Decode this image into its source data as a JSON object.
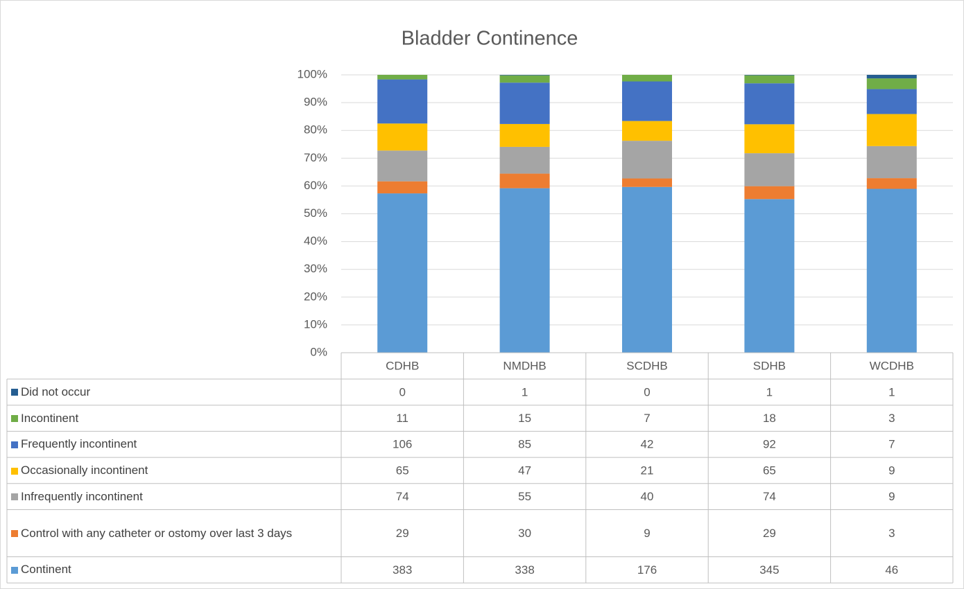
{
  "chart_data": {
    "type": "bar",
    "stack": "percent",
    "title": "Bladder Continence",
    "categories": [
      "CDHB",
      "NMDHB",
      "SCDHB",
      "SDHB",
      "WCDHB"
    ],
    "series": [
      {
        "name": "Continent",
        "color": "#5b9bd5",
        "values": [
          383,
          338,
          176,
          345,
          46
        ]
      },
      {
        "name": "Control with any catheter or ostomy over last 3 days",
        "color": "#ed7d31",
        "values": [
          29,
          30,
          9,
          29,
          3
        ]
      },
      {
        "name": "Infrequently incontinent",
        "color": "#a5a5a5",
        "values": [
          74,
          55,
          40,
          74,
          9
        ]
      },
      {
        "name": "Occasionally incontinent",
        "color": "#ffc000",
        "values": [
          65,
          47,
          21,
          65,
          9
        ]
      },
      {
        "name": "Frequently incontinent",
        "color": "#4472c4",
        "values": [
          106,
          85,
          42,
          92,
          7
        ]
      },
      {
        "name": "Incontinent",
        "color": "#70ad47",
        "values": [
          11,
          15,
          7,
          18,
          3
        ]
      },
      {
        "name": "Did not occur",
        "color": "#255e91",
        "values": [
          0,
          1,
          0,
          1,
          1
        ]
      }
    ],
    "ylim": [
      0,
      100
    ],
    "yticks": [
      {
        "value": 0,
        "label": "0%"
      },
      {
        "value": 10,
        "label": "10%"
      },
      {
        "value": 20,
        "label": "20%"
      },
      {
        "value": 30,
        "label": "30%"
      },
      {
        "value": 40,
        "label": "40%"
      },
      {
        "value": 50,
        "label": "50%"
      },
      {
        "value": 60,
        "label": "60%"
      },
      {
        "value": 70,
        "label": "70%"
      },
      {
        "value": 80,
        "label": "80%"
      },
      {
        "value": 90,
        "label": "90%"
      },
      {
        "value": 100,
        "label": "100%"
      }
    ],
    "grid": true
  }
}
